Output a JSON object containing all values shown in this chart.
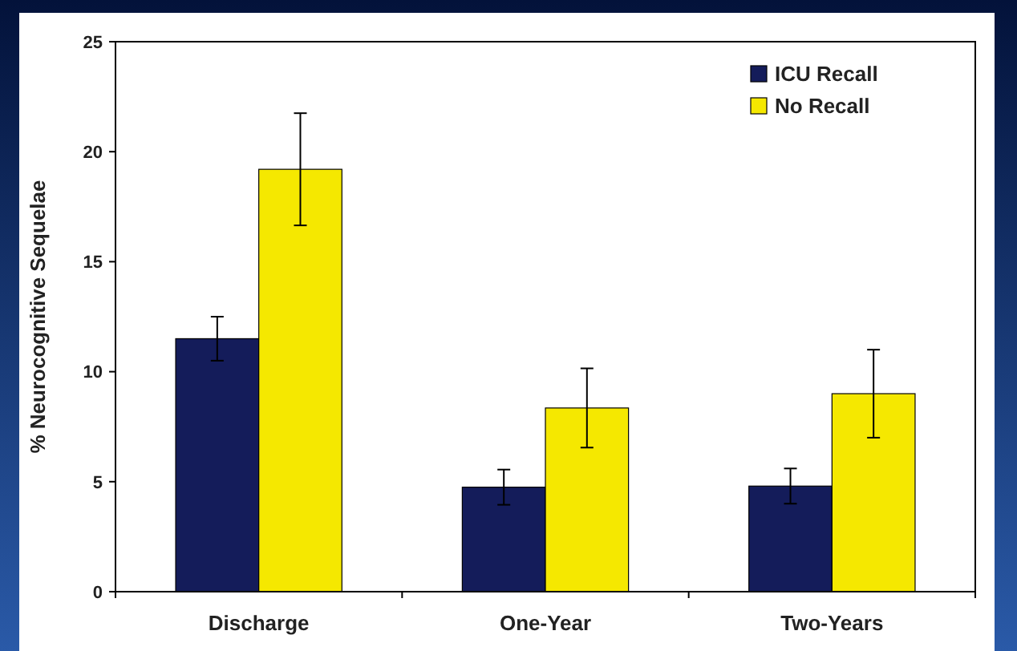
{
  "chart_data": {
    "type": "bar",
    "ylabel": "% Neurocognitive Sequelae",
    "categories": [
      "Discharge",
      "One-Year",
      "Two-Years"
    ],
    "series": [
      {
        "name": "ICU Recall",
        "color": "#141c5a",
        "values": [
          11.5,
          4.75,
          4.8
        ],
        "errors": [
          1.0,
          0.8,
          0.8
        ]
      },
      {
        "name": "No Recall",
        "color": "#f5e800",
        "values": [
          19.2,
          8.35,
          9.0
        ],
        "errors": [
          2.55,
          1.8,
          2.0
        ]
      }
    ],
    "ylim": [
      0,
      25
    ],
    "yticks": [
      0,
      5,
      10,
      15,
      20,
      25
    ],
    "grid": false,
    "legend": "top right"
  }
}
